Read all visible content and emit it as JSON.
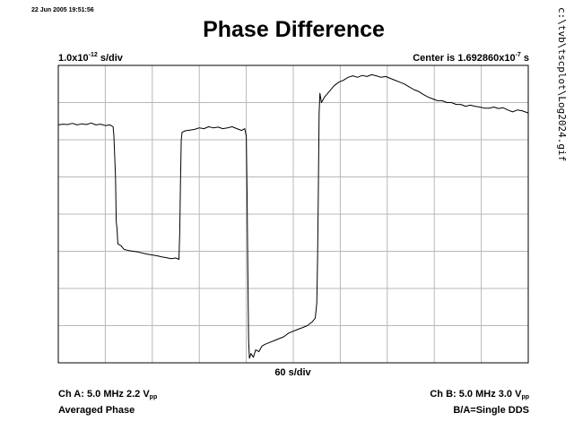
{
  "timestamp": "22 Jun 2005 19:51:56",
  "file_path": "c:\\tvb\\tscplot\\Log2024.gif",
  "chart_data": {
    "type": "line",
    "title": "Phase Difference",
    "ylabel": {
      "mantissa": "1.0x10",
      "exponent": "-12",
      "unit": " s/div"
    },
    "center": {
      "prefix": "Center is 1.692860x10",
      "exponent": "-7",
      "unit": " s"
    },
    "xlabel": "60 s/div",
    "x_divisions": 10,
    "y_divisions": 8,
    "xlim": [
      0,
      600
    ],
    "ylim": [
      0,
      8
    ],
    "grid": true,
    "series": [
      {
        "values": [
          [
            0,
            6.4
          ],
          [
            6,
            6.42
          ],
          [
            12,
            6.41
          ],
          [
            18,
            6.44
          ],
          [
            24,
            6.4
          ],
          [
            30,
            6.43
          ],
          [
            36,
            6.41
          ],
          [
            42,
            6.45
          ],
          [
            48,
            6.4
          ],
          [
            54,
            6.42
          ],
          [
            60,
            6.38
          ],
          [
            66,
            6.4
          ],
          [
            70,
            6.35
          ],
          [
            71,
            6.1
          ],
          [
            73,
            5.0
          ],
          [
            74,
            3.8
          ],
          [
            75,
            3.6
          ],
          [
            76,
            3.2
          ],
          [
            80,
            3.15
          ],
          [
            84,
            3.05
          ],
          [
            90,
            3.02
          ],
          [
            96,
            3.0
          ],
          [
            102,
            2.98
          ],
          [
            108,
            2.95
          ],
          [
            114,
            2.92
          ],
          [
            120,
            2.9
          ],
          [
            126,
            2.88
          ],
          [
            132,
            2.85
          ],
          [
            138,
            2.83
          ],
          [
            144,
            2.8
          ],
          [
            150,
            2.82
          ],
          [
            154,
            2.78
          ],
          [
            155,
            3.5
          ],
          [
            156,
            4.8
          ],
          [
            157,
            6.0
          ],
          [
            158,
            6.2
          ],
          [
            162,
            6.24
          ],
          [
            168,
            6.26
          ],
          [
            174,
            6.28
          ],
          [
            180,
            6.32
          ],
          [
            186,
            6.3
          ],
          [
            192,
            6.35
          ],
          [
            198,
            6.32
          ],
          [
            204,
            6.34
          ],
          [
            210,
            6.3
          ],
          [
            216,
            6.32
          ],
          [
            222,
            6.35
          ],
          [
            228,
            6.3
          ],
          [
            234,
            6.25
          ],
          [
            238,
            6.3
          ],
          [
            240,
            6.1
          ],
          [
            241,
            4.5
          ],
          [
            242,
            2.5
          ],
          [
            243,
            0.6
          ],
          [
            244,
            0.12
          ],
          [
            246,
            0.25
          ],
          [
            249,
            0.15
          ],
          [
            252,
            0.35
          ],
          [
            256,
            0.3
          ],
          [
            260,
            0.45
          ],
          [
            264,
            0.5
          ],
          [
            270,
            0.55
          ],
          [
            276,
            0.6
          ],
          [
            282,
            0.65
          ],
          [
            288,
            0.7
          ],
          [
            294,
            0.8
          ],
          [
            300,
            0.85
          ],
          [
            306,
            0.9
          ],
          [
            312,
            0.95
          ],
          [
            318,
            1.0
          ],
          [
            324,
            1.1
          ],
          [
            328,
            1.2
          ],
          [
            330,
            1.6
          ],
          [
            331,
            2.8
          ],
          [
            332,
            4.5
          ],
          [
            333,
            6.7
          ],
          [
            334,
            7.25
          ],
          [
            336,
            7.0
          ],
          [
            340,
            7.15
          ],
          [
            346,
            7.3
          ],
          [
            352,
            7.45
          ],
          [
            358,
            7.55
          ],
          [
            364,
            7.6
          ],
          [
            370,
            7.68
          ],
          [
            376,
            7.72
          ],
          [
            382,
            7.68
          ],
          [
            388,
            7.73
          ],
          [
            394,
            7.7
          ],
          [
            400,
            7.75
          ],
          [
            406,
            7.72
          ],
          [
            412,
            7.68
          ],
          [
            418,
            7.7
          ],
          [
            424,
            7.65
          ],
          [
            430,
            7.6
          ],
          [
            436,
            7.55
          ],
          [
            442,
            7.5
          ],
          [
            448,
            7.42
          ],
          [
            454,
            7.35
          ],
          [
            460,
            7.3
          ],
          [
            466,
            7.22
          ],
          [
            472,
            7.15
          ],
          [
            478,
            7.1
          ],
          [
            484,
            7.05
          ],
          [
            490,
            7.05
          ],
          [
            496,
            7.0
          ],
          [
            502,
            7.0
          ],
          [
            508,
            6.95
          ],
          [
            514,
            6.95
          ],
          [
            520,
            6.9
          ],
          [
            526,
            6.93
          ],
          [
            532,
            6.9
          ],
          [
            538,
            6.88
          ],
          [
            544,
            6.85
          ],
          [
            550,
            6.85
          ],
          [
            556,
            6.88
          ],
          [
            562,
            6.84
          ],
          [
            568,
            6.86
          ],
          [
            574,
            6.8
          ],
          [
            580,
            6.75
          ],
          [
            586,
            6.8
          ],
          [
            592,
            6.78
          ],
          [
            600,
            6.72
          ]
        ]
      }
    ]
  },
  "footer": {
    "ch_a": {
      "prefix": "Ch A: 5.0 MHz 2.2 V",
      "sub": "pp"
    },
    "averaged": "Averaged Phase",
    "ch_b": {
      "prefix": "Ch B: 5.0 MHz 3.0 V",
      "sub": "pp"
    },
    "ratio": "B/A=Single DDS"
  }
}
